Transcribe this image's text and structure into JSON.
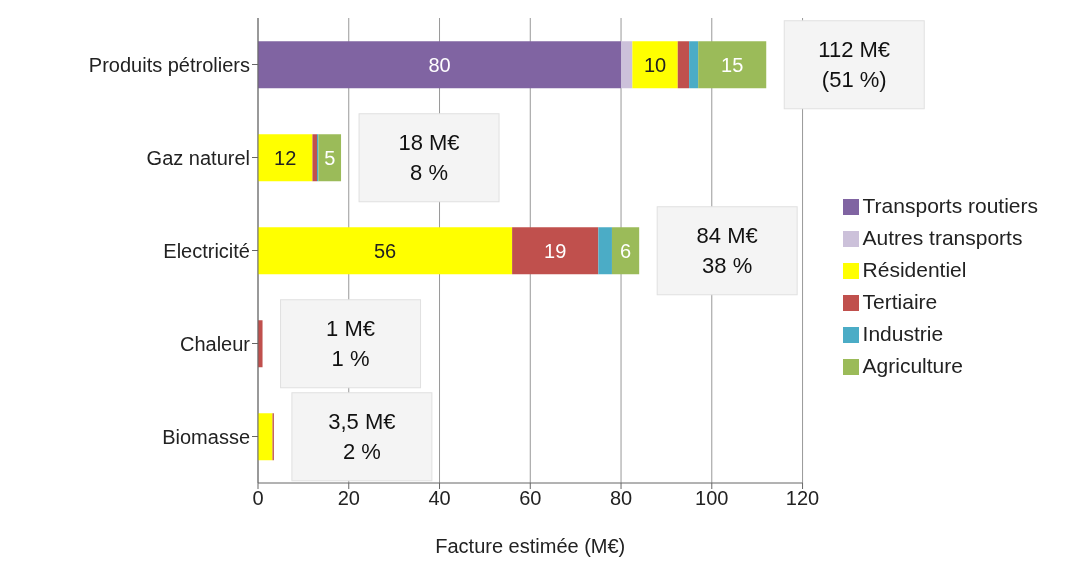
{
  "chart_data": {
    "type": "bar",
    "orientation": "horizontal",
    "stacked": true,
    "xlabel": "Facture estimée (M€)",
    "categories": [
      "Produits pétroliers",
      "Gaz naturel",
      "Electricité",
      "Chaleur",
      "Biomasse"
    ],
    "series": [
      {
        "name": "Transports routiers",
        "color": "#8064a2",
        "values": [
          80,
          0,
          0,
          0,
          0
        ],
        "value_labels": [
          "80",
          null,
          null,
          null,
          null
        ]
      },
      {
        "name": "Autres transports",
        "color": "#ccc1da",
        "values": [
          2.5,
          0,
          0,
          0,
          0
        ]
      },
      {
        "name": "Résidentiel",
        "color": "#ffff00",
        "values": [
          10,
          12,
          56,
          0,
          3.2
        ],
        "value_labels": [
          "10",
          "12",
          "56",
          null,
          null
        ]
      },
      {
        "name": "Tertiaire",
        "color": "#c0504d",
        "values": [
          2.5,
          1,
          19,
          1,
          0.3
        ],
        "value_labels": [
          null,
          null,
          "19",
          null,
          null
        ]
      },
      {
        "name": "Industrie",
        "color": "#4bacc6",
        "values": [
          2,
          0.3,
          3,
          0,
          0
        ]
      },
      {
        "name": "Agriculture",
        "color": "#9bbb59",
        "values": [
          15,
          5,
          6,
          0,
          0
        ],
        "value_labels": [
          "15",
          "5",
          "6",
          null,
          null
        ]
      }
    ],
    "totals": [
      "112 M€\n(51 %)",
      "18 M€\n8 %",
      "84 M€\n38 %",
      "1 M€\n1 %",
      "3,5 M€\n2 %"
    ],
    "xlim": [
      0,
      120
    ],
    "xticks": [
      0,
      20,
      40,
      60,
      80,
      100,
      120
    ],
    "grid": "x",
    "legend": "right"
  }
}
